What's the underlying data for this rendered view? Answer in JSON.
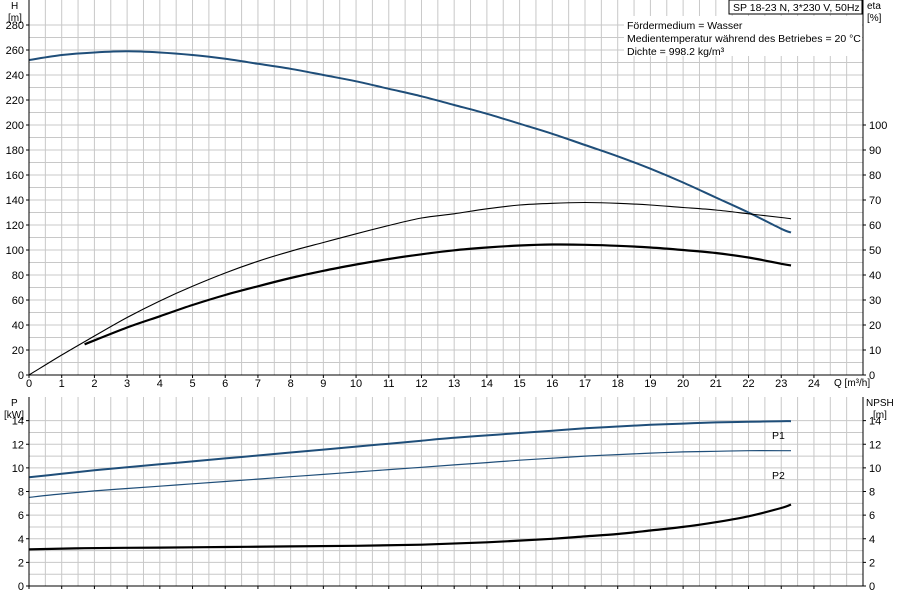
{
  "header": {
    "pump": "SP 18-23 N, 3*230 V, 50Hz"
  },
  "notes": [
    "Fördermedium = Wasser",
    "Medientemperatur während des Betriebes = 20 °C",
    "Dichte = 998.2 kg/m³"
  ],
  "colors": {
    "grid": "#c8c8c8",
    "blue": "#1f4e79",
    "black": "#000000"
  },
  "chart_data": [
    {
      "type": "line",
      "panel": "upper",
      "x_label": "Q [m³/h]",
      "x_ticks": [
        0,
        1,
        2,
        3,
        4,
        5,
        6,
        7,
        8,
        9,
        10,
        11,
        12,
        13,
        14,
        15,
        16,
        17,
        18,
        19,
        20,
        21,
        22,
        23,
        24
      ],
      "xlim": [
        0,
        25.5
      ],
      "left_axis": {
        "label": "H",
        "unit": "[m]",
        "ticks": [
          0,
          20,
          40,
          60,
          80,
          100,
          120,
          140,
          160,
          180,
          200,
          220,
          240,
          260,
          280
        ],
        "lim": [
          0,
          300
        ]
      },
      "right_axis": {
        "label": "eta",
        "unit": "[%]",
        "ticks": [
          0,
          10,
          20,
          30,
          40,
          50,
          60,
          70,
          80,
          90,
          100
        ],
        "lim": [
          0,
          150
        ]
      },
      "grid": true,
      "series": [
        {
          "axis": "left",
          "style": "blue-thick",
          "x": [
            0,
            1,
            2,
            3,
            4,
            5,
            6,
            7,
            8,
            9,
            10,
            11,
            12,
            13,
            14,
            15,
            16,
            17,
            18,
            19,
            20,
            21,
            22,
            23,
            23.3
          ],
          "y": [
            252,
            256,
            258,
            259,
            258,
            256,
            253,
            249,
            245,
            240,
            235,
            229,
            223,
            216,
            209,
            201,
            193,
            184,
            175,
            165,
            154,
            142,
            130,
            117,
            114
          ]
        },
        {
          "axis": "right",
          "style": "black-thin",
          "x": [
            0,
            1,
            2,
            3,
            4,
            5,
            6,
            7,
            8,
            9,
            10,
            11,
            12,
            13,
            14,
            15,
            16,
            17,
            18,
            19,
            20,
            21,
            22,
            23,
            23.3
          ],
          "y": [
            0,
            8,
            15.6,
            23,
            29.6,
            35.5,
            40.8,
            45.5,
            49.5,
            53,
            56.5,
            59.8,
            62.8,
            64.5,
            66.5,
            68,
            68.7,
            69,
            68.7,
            68,
            67,
            66,
            64.5,
            63,
            62.5
          ]
        },
        {
          "axis": "right",
          "style": "black-thick",
          "x": [
            1.7,
            3,
            4,
            5,
            6,
            7,
            8,
            9,
            10,
            11,
            12,
            13,
            14,
            15,
            16,
            17,
            18,
            19,
            20,
            21,
            22,
            23,
            23.3
          ],
          "y": [
            12.3,
            19,
            23.5,
            28,
            32,
            35.5,
            38.8,
            41.7,
            44.2,
            46.4,
            48.3,
            49.9,
            51,
            51.8,
            52.2,
            52.1,
            51.7,
            51,
            50,
            48.8,
            47,
            44.5,
            43.8
          ]
        }
      ]
    },
    {
      "type": "line",
      "panel": "lower",
      "x_ticks": [
        0,
        1,
        2,
        3,
        4,
        5,
        6,
        7,
        8,
        9,
        10,
        11,
        12,
        13,
        14,
        15,
        16,
        17,
        18,
        19,
        20,
        21,
        22,
        23,
        24
      ],
      "xlim": [
        0,
        25.5
      ],
      "left_axis": {
        "label": "P",
        "unit": "[kW]",
        "ticks": [
          0,
          2,
          4,
          6,
          8,
          10,
          12,
          14
        ],
        "lim": [
          0,
          16
        ]
      },
      "right_axis": {
        "label": "NPSH",
        "unit": "[m]",
        "ticks": [
          0,
          2,
          4,
          6,
          8,
          10,
          12,
          14
        ],
        "lim": [
          0,
          16
        ]
      },
      "grid": true,
      "series": [
        {
          "name": "P1",
          "axis": "left",
          "style": "blue-thick",
          "x": [
            0,
            1,
            2,
            3,
            4,
            5,
            6,
            7,
            8,
            9,
            10,
            11,
            12,
            13,
            14,
            15,
            16,
            17,
            18,
            19,
            20,
            21,
            22,
            23,
            23.3
          ],
          "y": [
            9.2,
            9.5,
            9.8,
            10.05,
            10.3,
            10.55,
            10.8,
            11.05,
            11.3,
            11.55,
            11.8,
            12.05,
            12.3,
            12.55,
            12.75,
            12.95,
            13.15,
            13.35,
            13.5,
            13.65,
            13.75,
            13.85,
            13.9,
            13.95,
            13.95
          ]
        },
        {
          "name": "P2",
          "axis": "left",
          "style": "blue-thin",
          "x": [
            0,
            1,
            2,
            3,
            4,
            5,
            6,
            7,
            8,
            9,
            10,
            11,
            12,
            13,
            14,
            15,
            16,
            17,
            18,
            19,
            20,
            21,
            22,
            23,
            23.3
          ],
          "y": [
            7.5,
            7.8,
            8.05,
            8.25,
            8.45,
            8.65,
            8.85,
            9.05,
            9.25,
            9.45,
            9.65,
            9.85,
            10.05,
            10.25,
            10.45,
            10.65,
            10.82,
            11,
            11.12,
            11.25,
            11.35,
            11.4,
            11.45,
            11.45,
            11.45
          ]
        },
        {
          "axis": "right",
          "style": "black-thick",
          "x": [
            0,
            1.7,
            4,
            6,
            8,
            10,
            12,
            14,
            16,
            17,
            18,
            19,
            20,
            21,
            22,
            23,
            23.3
          ],
          "y": [
            3.1,
            3.2,
            3.25,
            3.3,
            3.35,
            3.4,
            3.5,
            3.7,
            4,
            4.2,
            4.4,
            4.7,
            5,
            5.4,
            5.9,
            6.6,
            6.9
          ]
        }
      ]
    }
  ]
}
